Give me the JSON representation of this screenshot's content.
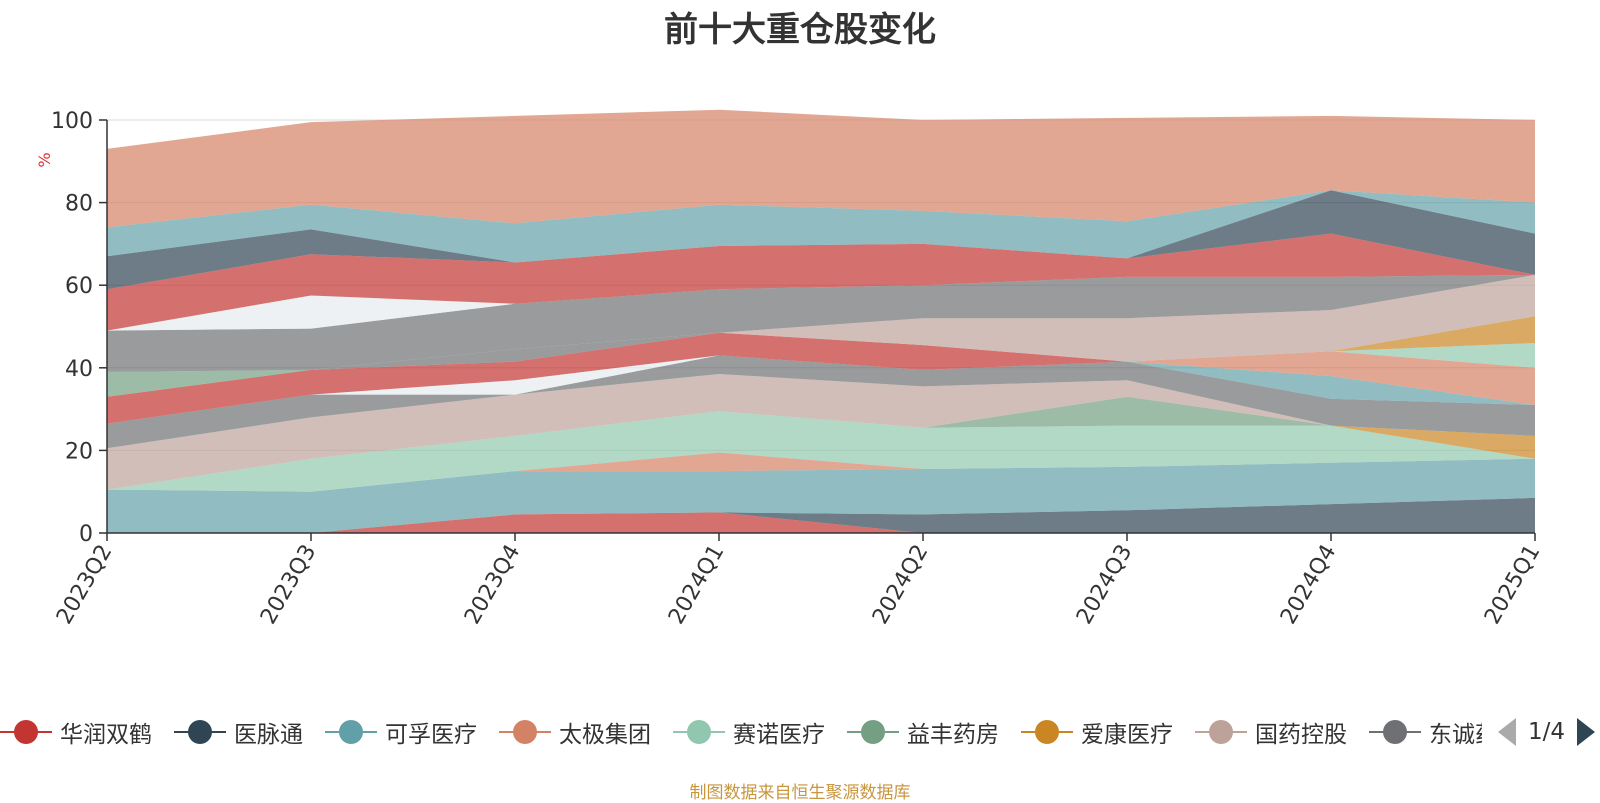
{
  "title": "前十大重仓股变化",
  "source_note": "制图数据来自恒生聚源数据库",
  "legend_page": "1/4",
  "legend": [
    {
      "name": "华润双鹤",
      "color": "#c23531"
    },
    {
      "name": "医脉通",
      "color": "#2f4554"
    },
    {
      "name": "可孚医疗",
      "color": "#61a0a8"
    },
    {
      "name": "太极集团",
      "color": "#d48265"
    },
    {
      "name": "赛诺医疗",
      "color": "#91c7ae"
    },
    {
      "name": "益丰药房",
      "color": "#749f83"
    },
    {
      "name": "爱康医疗",
      "color": "#ca8622"
    },
    {
      "name": "国药控股",
      "color": "#bda29a"
    },
    {
      "name": "东诚药业",
      "color": "#6e7074"
    }
  ],
  "chart_data": {
    "type": "area",
    "stacked": true,
    "title": "前十大重仓股变化",
    "ylabel": "%",
    "ylim": [
      0,
      100
    ],
    "yticks": [
      0,
      20,
      40,
      60,
      80,
      100
    ],
    "grid": true,
    "categories": [
      "2023Q2",
      "2023Q3",
      "2023Q4",
      "2024Q1",
      "2024Q2",
      "2024Q3",
      "2024Q4",
      "2025Q1"
    ],
    "layers": [
      {
        "color": "#c23531",
        "values": [
          0,
          0,
          4.5,
          5,
          0,
          0,
          0,
          0
        ]
      },
      {
        "color": "#2f4554",
        "values": [
          0,
          0,
          0,
          0,
          4.5,
          5.5,
          7,
          8.5
        ]
      },
      {
        "color": "#61a0a8",
        "values": [
          10.5,
          10,
          10.5,
          10,
          11,
          10.5,
          10,
          9.5
        ]
      },
      {
        "color": "#d48265",
        "values": [
          0,
          0,
          0,
          4.5,
          0,
          0,
          0,
          0
        ]
      },
      {
        "color": "#91c7ae",
        "values": [
          0,
          8,
          8.5,
          10,
          10,
          10,
          9,
          0
        ]
      },
      {
        "color": "#749f83",
        "values": [
          0,
          0,
          0,
          0,
          0,
          7,
          0,
          0
        ]
      },
      {
        "color": "#ca8622",
        "values": [
          0,
          0,
          0,
          0,
          0,
          0,
          0,
          5.5
        ]
      },
      {
        "color": "#bda29a",
        "values": [
          10,
          10,
          10,
          9,
          10,
          4,
          0,
          0
        ]
      },
      {
        "color": "#6e7074",
        "values": [
          6,
          5.5,
          0,
          4.5,
          4,
          4.5,
          6.5,
          7.5
        ]
      },
      {
        "color": "#e6ebf0",
        "values": [
          0,
          0,
          3.5,
          0,
          0,
          0,
          0,
          0
        ]
      },
      {
        "color": "#c23531",
        "values": [
          6.5,
          6,
          4.5,
          5.5,
          6,
          0,
          0,
          0
        ]
      },
      {
        "color": "#749f83",
        "values": [
          6,
          0,
          0,
          0,
          0,
          0,
          0,
          0
        ]
      },
      {
        "color": "#61a0a8",
        "values": [
          0,
          0,
          0,
          0,
          0,
          0,
          5.5,
          0
        ]
      },
      {
        "color": "#d48265",
        "values": [
          0,
          0,
          0,
          0,
          0,
          0,
          6,
          9
        ]
      },
      {
        "color": "#91c7ae",
        "values": [
          0,
          0,
          0,
          0,
          0,
          0,
          0,
          6
        ]
      },
      {
        "color": "#ca8622",
        "values": [
          0,
          0,
          0,
          0,
          0,
          0,
          0,
          6.5
        ]
      },
      {
        "color": "#6e7074",
        "values": [
          0,
          0,
          3,
          0,
          0,
          0,
          0,
          0
        ]
      },
      {
        "color": "#bda29a",
        "values": [
          0,
          0,
          0,
          0,
          6.5,
          10.5,
          10,
          10
        ]
      },
      {
        "color": "#6e7074",
        "values": [
          10,
          10,
          11,
          10.5,
          8,
          10,
          8,
          0
        ]
      },
      {
        "color": "#e6ebf0",
        "values": [
          0,
          8,
          0,
          0,
          0,
          0,
          0,
          0
        ]
      },
      {
        "color": "#c23531",
        "values": [
          10,
          10,
          10,
          10.5,
          10,
          4.5,
          10.5,
          0
        ]
      },
      {
        "color": "#2f4554",
        "values": [
          8,
          6,
          0,
          0,
          0,
          0,
          10.5,
          10
        ]
      },
      {
        "color": "#61a0a8",
        "values": [
          7,
          6,
          9.5,
          10,
          8,
          9,
          0,
          7.5
        ]
      },
      {
        "color": "#d48265",
        "values": [
          19,
          20,
          26,
          23,
          22,
          25,
          18,
          20
        ]
      }
    ]
  }
}
